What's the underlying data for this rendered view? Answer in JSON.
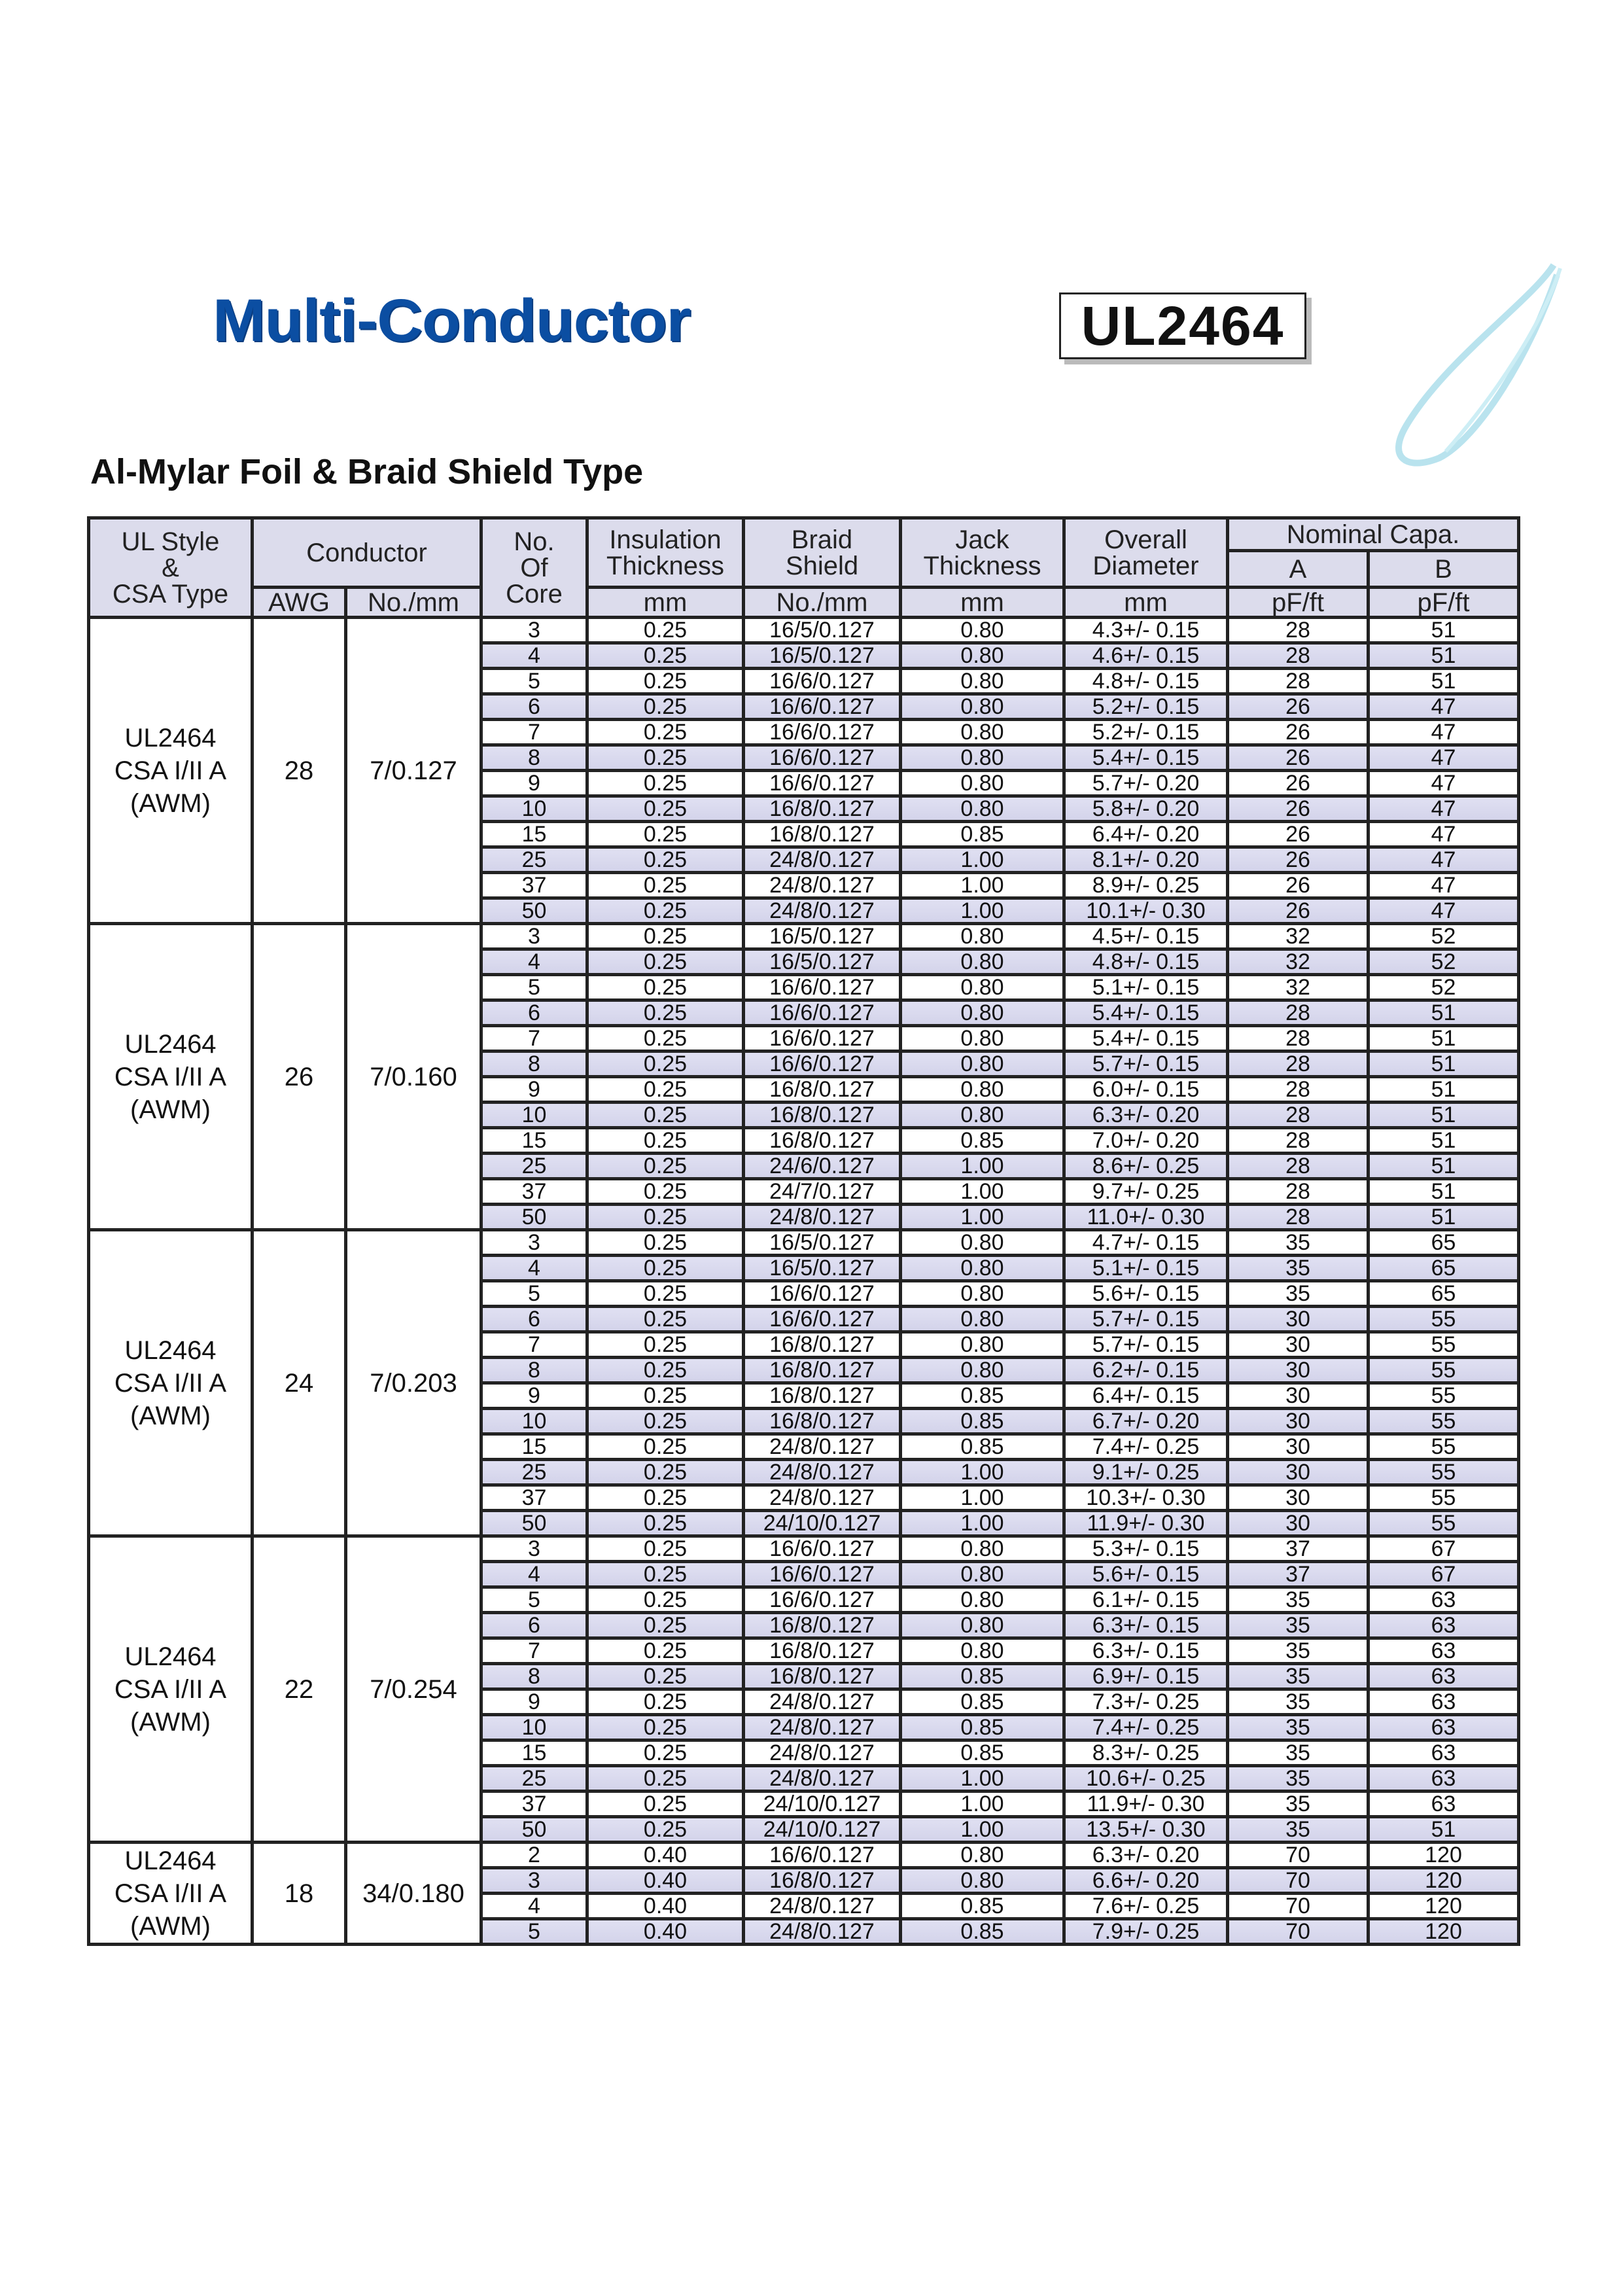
{
  "header": {
    "title": "Multi-Conductor",
    "model": "UL2464",
    "subtitle": "Al-Mylar Foil & Braid Shield Type",
    "title_color": "#0b4ea2",
    "decor_color": "#a8dcea"
  },
  "table": {
    "headers": {
      "ul_style": [
        "UL Style",
        "&",
        "CSA Type"
      ],
      "conductor": "Conductor",
      "awg": "AWG",
      "no_mm": "No./mm",
      "no_of_core": [
        "No.",
        "Of",
        "Core"
      ],
      "insulation": [
        "Insulation",
        "Thickness"
      ],
      "insulation_unit": "mm",
      "braid": [
        "Braid",
        "Shield"
      ],
      "braid_unit": "No./mm",
      "jack": [
        "Jack",
        "Thickness"
      ],
      "jack_unit": "mm",
      "overall": [
        "Overall",
        "Diameter"
      ],
      "overall_unit": "mm",
      "capa": "Nominal Capa.",
      "capa_a": "A",
      "capa_b": "B",
      "capa_a_unit": "pF/ft",
      "capa_b_unit": "pF/ft"
    },
    "row_shade_color": "#d9d9ee",
    "groups": [
      {
        "style": [
          "UL2464",
          "CSA I/II A",
          "(AWM)"
        ],
        "awg": "28",
        "conductor": "7/0.127",
        "rows": [
          [
            "3",
            "0.25",
            "16/5/0.127",
            "0.80",
            "4.3+/- 0.15",
            "28",
            "51"
          ],
          [
            "4",
            "0.25",
            "16/5/0.127",
            "0.80",
            "4.6+/- 0.15",
            "28",
            "51"
          ],
          [
            "5",
            "0.25",
            "16/6/0.127",
            "0.80",
            "4.8+/- 0.15",
            "28",
            "51"
          ],
          [
            "6",
            "0.25",
            "16/6/0.127",
            "0.80",
            "5.2+/- 0.15",
            "26",
            "47"
          ],
          [
            "7",
            "0.25",
            "16/6/0.127",
            "0.80",
            "5.2+/- 0.15",
            "26",
            "47"
          ],
          [
            "8",
            "0.25",
            "16/6/0.127",
            "0.80",
            "5.4+/- 0.15",
            "26",
            "47"
          ],
          [
            "9",
            "0.25",
            "16/6/0.127",
            "0.80",
            "5.7+/- 0.20",
            "26",
            "47"
          ],
          [
            "10",
            "0.25",
            "16/8/0.127",
            "0.80",
            "5.8+/- 0.20",
            "26",
            "47"
          ],
          [
            "15",
            "0.25",
            "16/8/0.127",
            "0.85",
            "6.4+/- 0.20",
            "26",
            "47"
          ],
          [
            "25",
            "0.25",
            "24/8/0.127",
            "1.00",
            "8.1+/- 0.20",
            "26",
            "47"
          ],
          [
            "37",
            "0.25",
            "24/8/0.127",
            "1.00",
            "8.9+/- 0.25",
            "26",
            "47"
          ],
          [
            "50",
            "0.25",
            "24/8/0.127",
            "1.00",
            "10.1+/- 0.30",
            "26",
            "47"
          ]
        ]
      },
      {
        "style": [
          "UL2464",
          "CSA I/II A",
          "(AWM)"
        ],
        "awg": "26",
        "conductor": "7/0.160",
        "rows": [
          [
            "3",
            "0.25",
            "16/5/0.127",
            "0.80",
            "4.5+/- 0.15",
            "32",
            "52"
          ],
          [
            "4",
            "0.25",
            "16/5/0.127",
            "0.80",
            "4.8+/- 0.15",
            "32",
            "52"
          ],
          [
            "5",
            "0.25",
            "16/6/0.127",
            "0.80",
            "5.1+/- 0.15",
            "32",
            "52"
          ],
          [
            "6",
            "0.25",
            "16/6/0.127",
            "0.80",
            "5.4+/- 0.15",
            "28",
            "51"
          ],
          [
            "7",
            "0.25",
            "16/6/0.127",
            "0.80",
            "5.4+/- 0.15",
            "28",
            "51"
          ],
          [
            "8",
            "0.25",
            "16/6/0.127",
            "0.80",
            "5.7+/- 0.15",
            "28",
            "51"
          ],
          [
            "9",
            "0.25",
            "16/8/0.127",
            "0.80",
            "6.0+/- 0.15",
            "28",
            "51"
          ],
          [
            "10",
            "0.25",
            "16/8/0.127",
            "0.80",
            "6.3+/- 0.20",
            "28",
            "51"
          ],
          [
            "15",
            "0.25",
            "16/8/0.127",
            "0.85",
            "7.0+/- 0.20",
            "28",
            "51"
          ],
          [
            "25",
            "0.25",
            "24/6/0.127",
            "1.00",
            "8.6+/- 0.25",
            "28",
            "51"
          ],
          [
            "37",
            "0.25",
            "24/7/0.127",
            "1.00",
            "9.7+/- 0.25",
            "28",
            "51"
          ],
          [
            "50",
            "0.25",
            "24/8/0.127",
            "1.00",
            "11.0+/- 0.30",
            "28",
            "51"
          ]
        ]
      },
      {
        "style": [
          "UL2464",
          "CSA I/II A",
          "(AWM)"
        ],
        "awg": "24",
        "conductor": "7/0.203",
        "rows": [
          [
            "3",
            "0.25",
            "16/5/0.127",
            "0.80",
            "4.7+/- 0.15",
            "35",
            "65"
          ],
          [
            "4",
            "0.25",
            "16/5/0.127",
            "0.80",
            "5.1+/- 0.15",
            "35",
            "65"
          ],
          [
            "5",
            "0.25",
            "16/6/0.127",
            "0.80",
            "5.6+/- 0.15",
            "35",
            "65"
          ],
          [
            "6",
            "0.25",
            "16/6/0.127",
            "0.80",
            "5.7+/- 0.15",
            "30",
            "55"
          ],
          [
            "7",
            "0.25",
            "16/8/0.127",
            "0.80",
            "5.7+/- 0.15",
            "30",
            "55"
          ],
          [
            "8",
            "0.25",
            "16/8/0.127",
            "0.80",
            "6.2+/- 0.15",
            "30",
            "55"
          ],
          [
            "9",
            "0.25",
            "16/8/0.127",
            "0.85",
            "6.4+/- 0.15",
            "30",
            "55"
          ],
          [
            "10",
            "0.25",
            "16/8/0.127",
            "0.85",
            "6.7+/- 0.20",
            "30",
            "55"
          ],
          [
            "15",
            "0.25",
            "24/8/0.127",
            "0.85",
            "7.4+/- 0.25",
            "30",
            "55"
          ],
          [
            "25",
            "0.25",
            "24/8/0.127",
            "1.00",
            "9.1+/- 0.25",
            "30",
            "55"
          ],
          [
            "37",
            "0.25",
            "24/8/0.127",
            "1.00",
            "10.3+/- 0.30",
            "30",
            "55"
          ],
          [
            "50",
            "0.25",
            "24/10/0.127",
            "1.00",
            "11.9+/- 0.30",
            "30",
            "55"
          ]
        ]
      },
      {
        "style": [
          "UL2464",
          "CSA I/II A",
          "(AWM)"
        ],
        "awg": "22",
        "conductor": "7/0.254",
        "rows": [
          [
            "3",
            "0.25",
            "16/6/0.127",
            "0.80",
            "5.3+/- 0.15",
            "37",
            "67"
          ],
          [
            "4",
            "0.25",
            "16/6/0.127",
            "0.80",
            "5.6+/- 0.15",
            "37",
            "67"
          ],
          [
            "5",
            "0.25",
            "16/6/0.127",
            "0.80",
            "6.1+/- 0.15",
            "35",
            "63"
          ],
          [
            "6",
            "0.25",
            "16/8/0.127",
            "0.80",
            "6.3+/- 0.15",
            "35",
            "63"
          ],
          [
            "7",
            "0.25",
            "16/8/0.127",
            "0.80",
            "6.3+/- 0.15",
            "35",
            "63"
          ],
          [
            "8",
            "0.25",
            "16/8/0.127",
            "0.85",
            "6.9+/- 0.15",
            "35",
            "63"
          ],
          [
            "9",
            "0.25",
            "24/8/0.127",
            "0.85",
            "7.3+/- 0.25",
            "35",
            "63"
          ],
          [
            "10",
            "0.25",
            "24/8/0.127",
            "0.85",
            "7.4+/- 0.25",
            "35",
            "63"
          ],
          [
            "15",
            "0.25",
            "24/8/0.127",
            "0.85",
            "8.3+/- 0.25",
            "35",
            "63"
          ],
          [
            "25",
            "0.25",
            "24/8/0.127",
            "1.00",
            "10.6+/- 0.25",
            "35",
            "63"
          ],
          [
            "37",
            "0.25",
            "24/10/0.127",
            "1.00",
            "11.9+/- 0.30",
            "35",
            "63"
          ],
          [
            "50",
            "0.25",
            "24/10/0.127",
            "1.00",
            "13.5+/- 0.30",
            "35",
            "51"
          ]
        ]
      },
      {
        "style": [
          "UL2464",
          "CSA I/II A",
          "(AWM)"
        ],
        "awg": "18",
        "conductor": "34/0.180",
        "rows": [
          [
            "2",
            "0.40",
            "16/6/0.127",
            "0.80",
            "6.3+/- 0.20",
            "70",
            "120"
          ],
          [
            "3",
            "0.40",
            "16/8/0.127",
            "0.80",
            "6.6+/- 0.20",
            "70",
            "120"
          ],
          [
            "4",
            "0.40",
            "24/8/0.127",
            "0.85",
            "7.6+/- 0.25",
            "70",
            "120"
          ],
          [
            "5",
            "0.40",
            "24/8/0.127",
            "0.85",
            "7.9+/- 0.25",
            "70",
            "120"
          ]
        ]
      }
    ]
  }
}
